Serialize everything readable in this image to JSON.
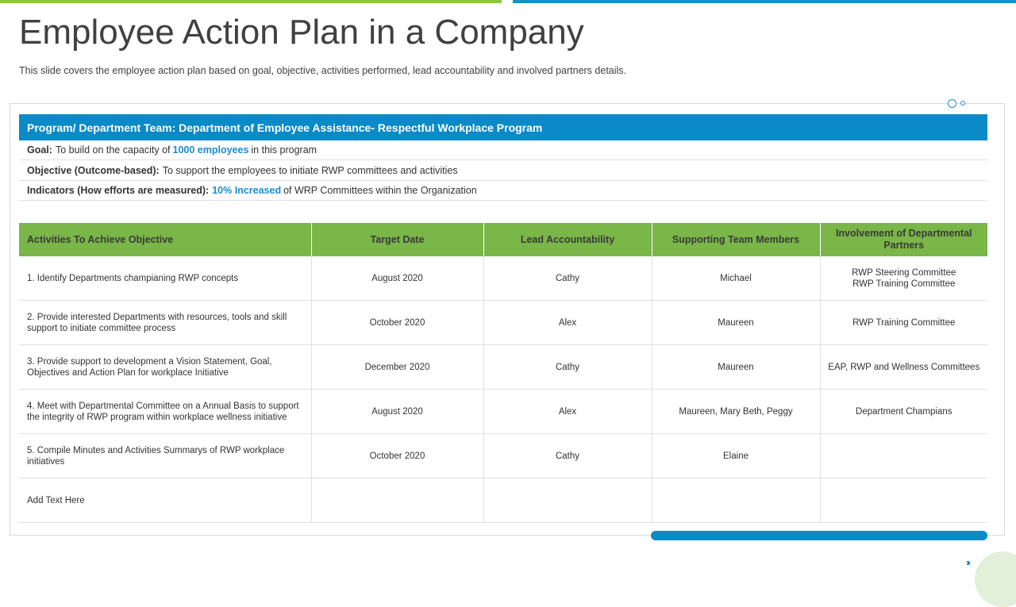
{
  "title": "Employee Action Plan in a Company",
  "subtitle": "This slide covers the employee action plan based on goal, objective, activities performed,  lead accountability and involved  partners details.",
  "program": "Program/ Department Team: Department of Employee Assistance- Respectful Workplace Program",
  "goal": {
    "label": "Goal:",
    "text_before": "To build on the capacity of",
    "highlight": "1000 employees",
    "text_after": "in this program"
  },
  "objective": {
    "label": "Objective (Outcome-based):",
    "text": "To support the employees to initiate RWP committees and activities"
  },
  "indicators": {
    "label": "Indicators (How efforts  are measured):",
    "highlight": "10%  Increased",
    "text_after": "of WRP Committees within the Organization"
  },
  "table": {
    "headers": [
      "Activities  To Achieve Objective",
      "Target Date",
      "Lead Accountability",
      "Supporting Team Members",
      "Involvement of Departmental Partners"
    ],
    "rows": [
      {
        "activity": "1. Identify Departments champianing RWP concepts",
        "date": "August 2020",
        "lead": "Cathy",
        "support": "Michael",
        "partners": [
          "RWP Steering Committee",
          "RWP Training Committee"
        ]
      },
      {
        "activity": "2. Provide interested Departments with resources, tools and skill support to initiate committee process",
        "date": "October 2020",
        "lead": "Alex",
        "support": "Maureen",
        "partners": [
          "RWP Training Committee"
        ]
      },
      {
        "activity": "3. Provide support to development a Vision Statement, Goal, Objectives and Action Plan for workplace Initiative",
        "date": "December 2020",
        "lead": "Cathy",
        "support": "Maureen",
        "partners": [
          "EAP, RWP and Wellness Committees"
        ]
      },
      {
        "activity": "4. Meet with Departmental Committee on a Annual Basis to support the integrity of RWP program within workplace wellness initiative",
        "date": "August 2020",
        "lead": "Alex",
        "support": "Maureen, Mary Beth, Peggy",
        "partners": [
          "Department Champians"
        ]
      },
      {
        "activity": "5. Compile Minutes and Activities Summarys of RWP workplace initiatives",
        "date": "October 2020",
        "lead": "Cathy",
        "support": "Elaine",
        "partners": [
          ""
        ]
      },
      {
        "activity": "Add Text Here",
        "date": "",
        "lead": "",
        "support": "",
        "partners": [
          ""
        ]
      }
    ]
  },
  "colors": {
    "accent_blue": "#0a8ac6",
    "accent_green": "#7ab648",
    "top_bar_green": "#8cc63f"
  },
  "icons": {
    "next": "chevron-right-triple-icon"
  }
}
